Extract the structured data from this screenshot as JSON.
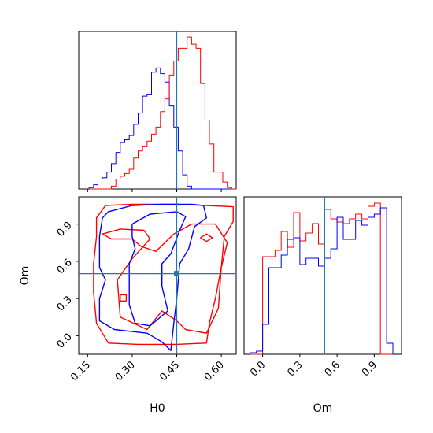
{
  "chart_data": {
    "type": "corner",
    "colors": {
      "series_a": "#ff0000",
      "series_b": "#0000ff",
      "truth": "#1f77b4"
    },
    "series": [
      {
        "name": "",
        "color": "#ff0000"
      },
      {
        "name": "",
        "color": "#0000ff"
      }
    ],
    "truth": {
      "H0": 0.45,
      "Om": 0.5
    },
    "panels": [
      {
        "id": "H0-marginal",
        "type": "histogram",
        "x_param": "H0",
        "xlim": [
          0.12,
          0.65
        ],
        "bin_edges": [
          0.155,
          0.17,
          0.185,
          0.2,
          0.215,
          0.23,
          0.245,
          0.26,
          0.275,
          0.29,
          0.305,
          0.32,
          0.335,
          0.35,
          0.365,
          0.38,
          0.395,
          0.41,
          0.425,
          0.44,
          0.455,
          0.47,
          0.485,
          0.5,
          0.515,
          0.53,
          0.545,
          0.56,
          0.575,
          0.59,
          0.605,
          0.62,
          0.635,
          0.65
        ],
        "series_b_counts": [
          1,
          3,
          7,
          8,
          12,
          18,
          26,
          33,
          35,
          38,
          46,
          54,
          66,
          67,
          83,
          86,
          82,
          76,
          59,
          44,
          27,
          10,
          2,
          0,
          0,
          0,
          0,
          0,
          0,
          0,
          0,
          0,
          0
        ],
        "series_a_counts": [
          0,
          0,
          0,
          0,
          0,
          2,
          7,
          9,
          11,
          14,
          22,
          27,
          30,
          34,
          39,
          44,
          55,
          64,
          81,
          91,
          100,
          100,
          108,
          103,
          100,
          75,
          49,
          32,
          12,
          12,
          5,
          1,
          0
        ],
        "ticks": [
          0.15,
          0.3,
          0.45,
          0.6
        ]
      },
      {
        "id": "H0-Om-contours",
        "type": "contour",
        "x_param": "H0",
        "y_param": "Om",
        "xlim": [
          0.12,
          0.65
        ],
        "ylim": [
          -0.15,
          1.12
        ],
        "xticks": [
          "0.15",
          "0.30",
          "0.45",
          "0.60"
        ],
        "yticks": [
          "0.0",
          "0.3",
          "0.6",
          "0.9"
        ],
        "xlabel": "H0",
        "ylabel": "Om"
      },
      {
        "id": "Om-marginal",
        "type": "histogram",
        "x_param": "Om",
        "xlim": [
          -0.15,
          1.12
        ],
        "bin_edges": [
          -0.1,
          -0.05,
          0.0,
          0.05,
          0.1,
          0.15,
          0.2,
          0.25,
          0.3,
          0.35,
          0.4,
          0.45,
          0.5,
          0.55,
          0.6,
          0.65,
          0.7,
          0.75,
          0.8,
          0.85,
          0.9,
          0.95,
          1.0,
          1.05
        ],
        "series_a_counts": [
          0,
          0,
          62,
          62,
          66,
          78,
          68,
          90,
          72,
          77,
          83,
          70,
          92,
          86,
          84,
          83,
          86,
          89,
          86,
          94,
          96,
          0,
          0
        ],
        "series_b_counts": [
          1,
          2,
          19,
          55,
          55,
          63,
          73,
          74,
          57,
          61,
          61,
          56,
          61,
          67,
          87,
          73,
          73,
          85,
          82,
          87,
          89,
          93,
          7
        ],
        "xticks": [
          "0.0",
          "0.3",
          "0.6",
          "0.9"
        ],
        "xlabel": "Om"
      }
    ]
  }
}
